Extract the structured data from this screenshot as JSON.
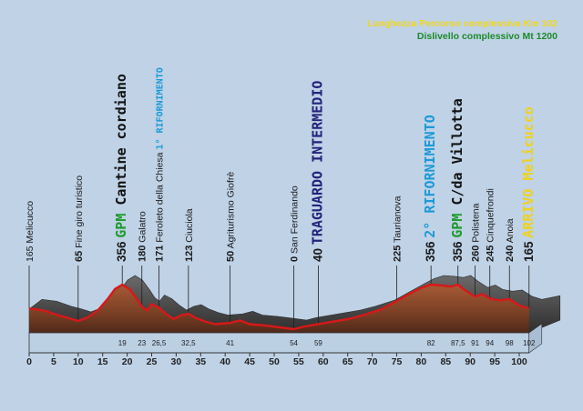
{
  "header": {
    "length_line": "Lunghezza Percorso complessiva Km 102",
    "climb_line": "Dislivello complessivo Mt 1200"
  },
  "colors": {
    "background": "#bfd2e6",
    "header_length": "#f2d61c",
    "header_climb": "#1e8a2a",
    "gpm_green": "#1f9a2c",
    "rifornimento_cyan": "#1c9ad6",
    "traguardo_navy": "#23237a",
    "arrivo_yellow": "#f0d21a",
    "profile_red": "#d81818",
    "profile_fill": "#8a4a2c",
    "ridge_gray": "#4a4a4a"
  },
  "x_axis": {
    "ticks": [
      "0",
      "5",
      "10",
      "15",
      "20",
      "25",
      "30",
      "35",
      "40",
      "45",
      "50",
      "55",
      "60",
      "65",
      "70",
      "75",
      "80",
      "85",
      "90",
      "95",
      "100"
    ]
  },
  "km_markers": [
    "19",
    "23",
    "26,5",
    "32,5",
    "41",
    "54",
    "59",
    "82",
    "87,5",
    "91",
    "94",
    "98",
    "102"
  ],
  "waypoints": [
    {
      "km": 0,
      "segments": [
        {
          "text": "165 Melicucco",
          "style": "plain"
        }
      ]
    },
    {
      "km": 10,
      "segments": [
        {
          "text": "65",
          "style": "plain-bold"
        },
        {
          "text": " Fine giro turistico",
          "style": "plain"
        }
      ]
    },
    {
      "km": 19,
      "segments": [
        {
          "text": "356 ",
          "style": "plain-big"
        },
        {
          "text": "GPM",
          "style": "gpm"
        },
        {
          "text": " Cantine cordiano",
          "style": "black-big"
        }
      ]
    },
    {
      "km": 23,
      "segments": [
        {
          "text": "180",
          "style": "plain-bold"
        },
        {
          "text": " Galatro",
          "style": "plain"
        }
      ]
    },
    {
      "km": 26.5,
      "segments": [
        {
          "text": "171",
          "style": "plain-bold"
        },
        {
          "text": " Feroleto della Chiesa ",
          "style": "plain"
        },
        {
          "text": "1° RIFORNIMENTO",
          "style": "rifornimento-small"
        }
      ]
    },
    {
      "km": 32.5,
      "segments": [
        {
          "text": "123",
          "style": "plain-bold"
        },
        {
          "text": " Ciuciola",
          "style": "plain"
        }
      ]
    },
    {
      "km": 41,
      "segments": [
        {
          "text": "50",
          "style": "plain-bold"
        },
        {
          "text": " Agriturismo Giofrè",
          "style": "plain"
        }
      ]
    },
    {
      "km": 54,
      "segments": [
        {
          "text": "0",
          "style": "plain-bold"
        },
        {
          "text": " San Ferdinando",
          "style": "plain"
        }
      ]
    },
    {
      "km": 59,
      "segments": [
        {
          "text": "40 ",
          "style": "plain-big"
        },
        {
          "text": "TRAGUARDO INTERMEDIO",
          "style": "traguardo"
        }
      ]
    },
    {
      "km": 75,
      "segments": [
        {
          "text": "225",
          "style": "plain-bold"
        },
        {
          "text": " Taurianova",
          "style": "plain"
        }
      ]
    },
    {
      "km": 82,
      "segments": [
        {
          "text": "356 ",
          "style": "plain-big"
        },
        {
          "text": "2° RIFORNIMENTO",
          "style": "rifornimento-big"
        }
      ]
    },
    {
      "km": 87.5,
      "segments": [
        {
          "text": "356 ",
          "style": "plain-big"
        },
        {
          "text": "GPM",
          "style": "gpm"
        },
        {
          "text": " C/da Villotta",
          "style": "black-big"
        }
      ]
    },
    {
      "km": 91,
      "segments": [
        {
          "text": "260",
          "style": "plain-bold"
        },
        {
          "text": " Polistena",
          "style": "plain"
        }
      ]
    },
    {
      "km": 94,
      "segments": [
        {
          "text": "245",
          "style": "plain-bold"
        },
        {
          "text": " Cinquefrondi",
          "style": "plain"
        }
      ]
    },
    {
      "km": 98,
      "segments": [
        {
          "text": "240",
          "style": "plain-bold"
        },
        {
          "text": " Anoia",
          "style": "plain"
        }
      ]
    },
    {
      "km": 102,
      "segments": [
        {
          "text": "165 ",
          "style": "plain-big"
        },
        {
          "text": "ARRIVO Melicucco",
          "style": "arrivo"
        }
      ]
    }
  ],
  "profile": [
    {
      "km": 0,
      "m": 165
    },
    {
      "km": 3,
      "m": 150
    },
    {
      "km": 6,
      "m": 110
    },
    {
      "km": 8,
      "m": 90
    },
    {
      "km": 10,
      "m": 65
    },
    {
      "km": 12,
      "m": 95
    },
    {
      "km": 14,
      "m": 150
    },
    {
      "km": 16,
      "m": 240
    },
    {
      "km": 17.5,
      "m": 320
    },
    {
      "km": 19,
      "m": 356
    },
    {
      "km": 20.5,
      "m": 320
    },
    {
      "km": 22,
      "m": 240
    },
    {
      "km": 23,
      "m": 180
    },
    {
      "km": 24,
      "m": 150
    },
    {
      "km": 25,
      "m": 200
    },
    {
      "km": 26.5,
      "m": 171
    },
    {
      "km": 28,
      "m": 120
    },
    {
      "km": 29.5,
      "m": 80
    },
    {
      "km": 31,
      "m": 110
    },
    {
      "km": 32.5,
      "m": 123
    },
    {
      "km": 34,
      "m": 90
    },
    {
      "km": 36,
      "m": 60
    },
    {
      "km": 38,
      "m": 40
    },
    {
      "km": 41,
      "m": 50
    },
    {
      "km": 43,
      "m": 70
    },
    {
      "km": 45,
      "m": 40
    },
    {
      "km": 48,
      "m": 30
    },
    {
      "km": 51,
      "m": 15
    },
    {
      "km": 54,
      "m": 0
    },
    {
      "km": 56,
      "m": 20
    },
    {
      "km": 59,
      "m": 40
    },
    {
      "km": 62,
      "m": 60
    },
    {
      "km": 65,
      "m": 80
    },
    {
      "km": 68,
      "m": 110
    },
    {
      "km": 72,
      "m": 160
    },
    {
      "km": 75,
      "m": 225
    },
    {
      "km": 78,
      "m": 290
    },
    {
      "km": 80,
      "m": 330
    },
    {
      "km": 82,
      "m": 356
    },
    {
      "km": 84,
      "m": 350
    },
    {
      "km": 86,
      "m": 340
    },
    {
      "km": 87.5,
      "m": 356
    },
    {
      "km": 89,
      "m": 310
    },
    {
      "km": 91,
      "m": 260
    },
    {
      "km": 92.5,
      "m": 280
    },
    {
      "km": 94,
      "m": 245
    },
    {
      "km": 96,
      "m": 230
    },
    {
      "km": 98,
      "m": 240
    },
    {
      "km": 100,
      "m": 190
    },
    {
      "km": 102,
      "m": 165
    }
  ]
}
